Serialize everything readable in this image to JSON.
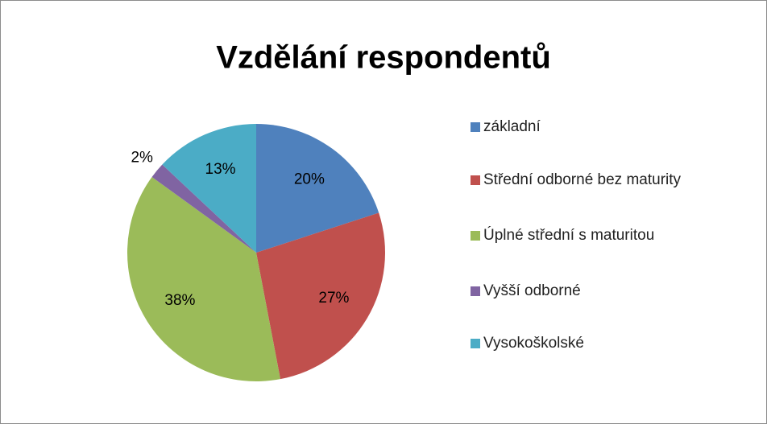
{
  "chart_data": {
    "type": "pie",
    "title": "Vzdělání respondentů",
    "categories": [
      "základní",
      "Střední odborné bez maturity",
      "Úplné střední s maturitou",
      "Vyšší odborné",
      "Vysokoškolské"
    ],
    "values": [
      20,
      27,
      38,
      2,
      13
    ],
    "value_labels": [
      "20%",
      "27%",
      "38%",
      "2%",
      "13%"
    ],
    "colors": [
      "#4f81bd",
      "#c0504d",
      "#9bbb59",
      "#8064a2",
      "#4bacc6"
    ],
    "legend": "right"
  }
}
